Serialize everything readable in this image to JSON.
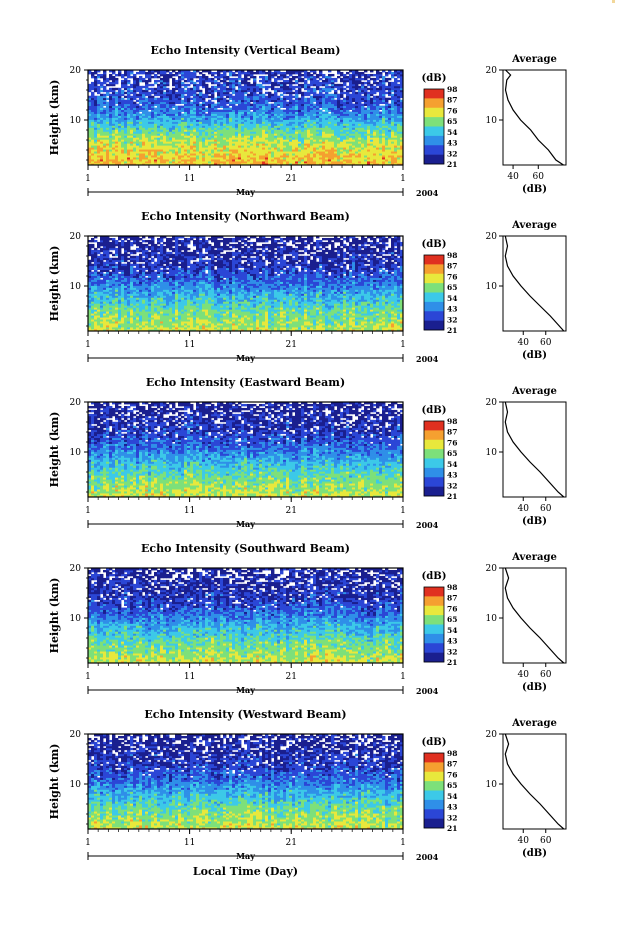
{
  "chart_data": [
    {
      "type": "heatmap",
      "title": "Echo Intensity (Vertical Beam)",
      "ylabel": "Height (km)",
      "ylim": [
        1,
        20
      ],
      "yticks": [
        "20",
        "10"
      ],
      "xticks": [
        "1",
        "11",
        "21",
        "1"
      ],
      "month_label": "May",
      "year_label": "2004",
      "colorbar_label": "(dB)",
      "colorbar_ticks": [
        "98",
        "87",
        "76",
        "65",
        "54",
        "43",
        "32",
        "21"
      ],
      "profile": {
        "title": "Average",
        "xlabel": "(dB)",
        "xticks": [
          "40",
          "60"
        ],
        "xlim": [
          32,
          82
        ],
        "yticks": [
          "20",
          "10"
        ],
        "points": [
          [
            80,
            1
          ],
          [
            74,
            2
          ],
          [
            68,
            4
          ],
          [
            60,
            6
          ],
          [
            54,
            8
          ],
          [
            46,
            10
          ],
          [
            40,
            12
          ],
          [
            36,
            14
          ],
          [
            34,
            16
          ],
          [
            35,
            18
          ],
          [
            38,
            19
          ],
          [
            34,
            20
          ]
        ]
      },
      "intensity_profile": [
        [
          1,
          80
        ],
        [
          5,
          72
        ],
        [
          8,
          60
        ],
        [
          11,
          45
        ],
        [
          14,
          35
        ],
        [
          17,
          33
        ],
        [
          20,
          30
        ]
      ]
    },
    {
      "type": "heatmap",
      "title": "Echo Intensity (Northward Beam)",
      "ylabel": "Height (km)",
      "ylim": [
        1,
        20
      ],
      "yticks": [
        "20",
        "10"
      ],
      "xticks": [
        "1",
        "11",
        "21",
        "1"
      ],
      "month_label": "May",
      "year_label": "2004",
      "colorbar_label": "(dB)",
      "colorbar_ticks": [
        "98",
        "87",
        "76",
        "65",
        "54",
        "43",
        "32",
        "21"
      ],
      "profile": {
        "title": "Average",
        "xlabel": "(dB)",
        "xticks": [
          "40",
          "60"
        ],
        "xlim": [
          22,
          78
        ],
        "yticks": [
          "20",
          "10"
        ],
        "points": [
          [
            76,
            1
          ],
          [
            72,
            2
          ],
          [
            64,
            4
          ],
          [
            55,
            6
          ],
          [
            46,
            8
          ],
          [
            38,
            10
          ],
          [
            31,
            12
          ],
          [
            26,
            14
          ],
          [
            24,
            16
          ],
          [
            26,
            18
          ],
          [
            24,
            20
          ]
        ]
      },
      "intensity_profile": [
        [
          1,
          72
        ],
        [
          5,
          62
        ],
        [
          8,
          52
        ],
        [
          11,
          40
        ],
        [
          14,
          32
        ],
        [
          17,
          28
        ],
        [
          20,
          26
        ]
      ]
    },
    {
      "type": "heatmap",
      "title": "Echo Intensity (Eastward Beam)",
      "ylabel": "Height (km)",
      "ylim": [
        1,
        20
      ],
      "yticks": [
        "20",
        "10"
      ],
      "xticks": [
        "1",
        "11",
        "21",
        "1"
      ],
      "month_label": "May",
      "year_label": "2004",
      "colorbar_label": "(dB)",
      "colorbar_ticks": [
        "98",
        "87",
        "76",
        "65",
        "54",
        "43",
        "32",
        "21"
      ],
      "profile": {
        "title": "Average",
        "xlabel": "(dB)",
        "xticks": [
          "40",
          "60"
        ],
        "xlim": [
          22,
          78
        ],
        "yticks": [
          "20",
          "10"
        ],
        "points": [
          [
            76,
            1
          ],
          [
            71,
            2
          ],
          [
            63,
            4
          ],
          [
            55,
            6
          ],
          [
            46,
            8
          ],
          [
            38,
            10
          ],
          [
            31,
            12
          ],
          [
            26,
            14
          ],
          [
            24,
            16
          ],
          [
            26,
            18
          ],
          [
            24,
            20
          ]
        ]
      },
      "intensity_profile": [
        [
          1,
          72
        ],
        [
          5,
          62
        ],
        [
          8,
          52
        ],
        [
          11,
          40
        ],
        [
          14,
          32
        ],
        [
          17,
          28
        ],
        [
          20,
          26
        ]
      ]
    },
    {
      "type": "heatmap",
      "title": "Echo Intensity (Southward Beam)",
      "ylabel": "Height (km)",
      "ylim": [
        1,
        20
      ],
      "yticks": [
        "20",
        "10"
      ],
      "xticks": [
        "1",
        "11",
        "21",
        "1"
      ],
      "month_label": "May",
      "year_label": "2004",
      "colorbar_label": "(dB)",
      "colorbar_ticks": [
        "98",
        "87",
        "76",
        "65",
        "54",
        "43",
        "32",
        "21"
      ],
      "profile": {
        "title": "Average",
        "xlabel": "(dB)",
        "xticks": [
          "40",
          "60"
        ],
        "xlim": [
          22,
          78
        ],
        "yticks": [
          "20",
          "10"
        ],
        "points": [
          [
            76,
            1
          ],
          [
            71,
            2
          ],
          [
            63,
            4
          ],
          [
            55,
            6
          ],
          [
            46,
            8
          ],
          [
            38,
            10
          ],
          [
            31,
            12
          ],
          [
            26,
            14
          ],
          [
            24,
            16
          ],
          [
            27,
            18
          ],
          [
            24,
            20
          ]
        ]
      },
      "intensity_profile": [
        [
          1,
          72
        ],
        [
          5,
          62
        ],
        [
          8,
          52
        ],
        [
          11,
          40
        ],
        [
          14,
          32
        ],
        [
          17,
          28
        ],
        [
          20,
          26
        ]
      ]
    },
    {
      "type": "heatmap",
      "title": "Echo Intensity (Westward Beam)",
      "ylabel": "Height (km)",
      "ylim": [
        1,
        20
      ],
      "yticks": [
        "20",
        "10"
      ],
      "xticks": [
        "1",
        "11",
        "21",
        "1"
      ],
      "month_label": "May",
      "year_label": "2004",
      "xlabel": "Local Time (Day)",
      "colorbar_label": "(dB)",
      "colorbar_ticks": [
        "98",
        "87",
        "76",
        "65",
        "54",
        "43",
        "32",
        "21"
      ],
      "profile": {
        "title": "Average",
        "xlabel": "(dB)",
        "xticks": [
          "40",
          "60"
        ],
        "xlim": [
          22,
          78
        ],
        "yticks": [
          "20",
          "10"
        ],
        "points": [
          [
            76,
            1
          ],
          [
            71,
            2
          ],
          [
            63,
            4
          ],
          [
            55,
            6
          ],
          [
            46,
            8
          ],
          [
            38,
            10
          ],
          [
            31,
            12
          ],
          [
            26,
            14
          ],
          [
            24,
            16
          ],
          [
            27,
            18
          ],
          [
            24,
            20
          ]
        ]
      },
      "intensity_profile": [
        [
          1,
          72
        ],
        [
          5,
          62
        ],
        [
          8,
          52
        ],
        [
          11,
          40
        ],
        [
          14,
          32
        ],
        [
          17,
          28
        ],
        [
          20,
          26
        ]
      ]
    }
  ],
  "colormap": [
    "#1a1f8f",
    "#2b46d6",
    "#2f8fe8",
    "#3cc9e8",
    "#7de07a",
    "#e8e83c",
    "#f5a030",
    "#e03020"
  ]
}
